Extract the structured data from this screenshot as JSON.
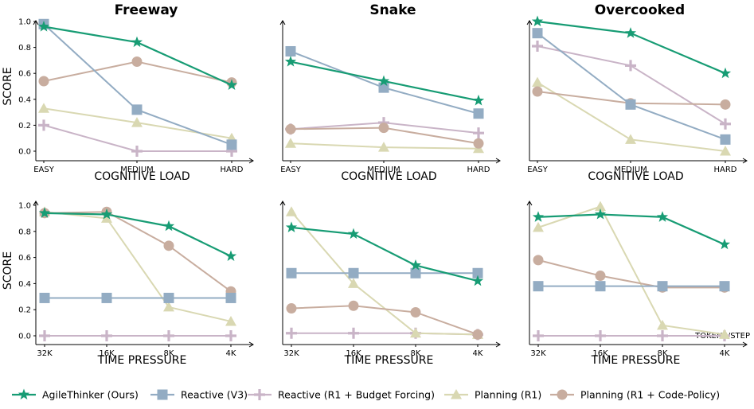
{
  "chart_data": [
    {
      "type": "line",
      "title": "Freeway",
      "xlabel": "COGNITIVE LOAD",
      "ylabel": "SCORE",
      "categories": [
        "EASY",
        "MEDIUM",
        "HARD"
      ],
      "ylim": [
        0,
        1
      ],
      "yticks": [
        "0.0",
        "0.2",
        "0.4",
        "0.6",
        "0.8",
        "1.0"
      ],
      "series": [
        {
          "name": "AgileThinker (Ours)",
          "values": [
            0.96,
            0.84,
            0.51
          ]
        },
        {
          "name": "Reactive (V3)",
          "values": [
            0.98,
            0.32,
            0.05
          ]
        },
        {
          "name": "Reactive (R1 + Budget Forcing)",
          "values": [
            0.2,
            0.0,
            0.0
          ]
        },
        {
          "name": "Planning (R1)",
          "values": [
            0.33,
            0.22,
            0.1
          ]
        },
        {
          "name": "Planning (R1 + Code-Policy)",
          "values": [
            0.54,
            0.69,
            0.53
          ]
        }
      ]
    },
    {
      "type": "line",
      "title": "Snake",
      "xlabel": "COGNITIVE LOAD",
      "ylabel": "",
      "categories": [
        "EASY",
        "MEDIUM",
        "HARD"
      ],
      "ylim": [
        0,
        1
      ],
      "yticks": [],
      "series": [
        {
          "name": "AgileThinker (Ours)",
          "values": [
            0.69,
            0.54,
            0.39
          ]
        },
        {
          "name": "Reactive (V3)",
          "values": [
            0.77,
            0.49,
            0.29
          ]
        },
        {
          "name": "Reactive (R1 + Budget Forcing)",
          "values": [
            0.17,
            0.22,
            0.14
          ]
        },
        {
          "name": "Planning (R1)",
          "values": [
            0.06,
            0.03,
            0.02
          ]
        },
        {
          "name": "Planning (R1 + Code-Policy)",
          "values": [
            0.17,
            0.18,
            0.06
          ]
        }
      ]
    },
    {
      "type": "line",
      "title": "Overcooked",
      "xlabel": "COGNITIVE LOAD",
      "ylabel": "",
      "categories": [
        "EASY",
        "MEDIUM",
        "HARD"
      ],
      "ylim": [
        0,
        1
      ],
      "yticks": [],
      "series": [
        {
          "name": "AgileThinker (Ours)",
          "values": [
            1.0,
            0.91,
            0.6
          ]
        },
        {
          "name": "Reactive (V3)",
          "values": [
            0.91,
            0.36,
            0.09
          ]
        },
        {
          "name": "Reactive (R1 + Budget Forcing)",
          "values": [
            0.81,
            0.66,
            0.21
          ]
        },
        {
          "name": "Planning (R1)",
          "values": [
            0.53,
            0.09,
            0.0
          ]
        },
        {
          "name": "Planning (R1 + Code-Policy)",
          "values": [
            0.46,
            0.37,
            0.36
          ]
        }
      ]
    },
    {
      "type": "line",
      "title": "",
      "xlabel": "TIME PRESSURE",
      "ylabel": "SCORE",
      "categories": [
        "32K",
        "16K",
        "8K",
        "4K"
      ],
      "ylim": [
        0,
        1
      ],
      "yticks": [
        "0.0",
        "0.2",
        "0.4",
        "0.6",
        "0.8",
        "1.0"
      ],
      "series": [
        {
          "name": "AgileThinker (Ours)",
          "values": [
            0.94,
            0.93,
            0.84,
            0.61
          ]
        },
        {
          "name": "Reactive (V3)",
          "values": [
            0.29,
            0.29,
            0.29,
            0.29
          ]
        },
        {
          "name": "Reactive (R1 + Budget Forcing)",
          "values": [
            0.0,
            0.0,
            0.0,
            0.0
          ]
        },
        {
          "name": "Planning (R1)",
          "values": [
            0.95,
            0.9,
            0.22,
            0.11
          ]
        },
        {
          "name": "Planning (R1 + Code-Policy)",
          "values": [
            0.94,
            0.95,
            0.69,
            0.34
          ]
        }
      ]
    },
    {
      "type": "line",
      "title": "",
      "xlabel": "TIME PRESSURE",
      "ylabel": "",
      "categories": [
        "32K",
        "16K",
        "8K",
        "4K"
      ],
      "ylim": [
        0,
        1
      ],
      "yticks": [],
      "series": [
        {
          "name": "AgileThinker (Ours)",
          "values": [
            0.83,
            0.78,
            0.54,
            0.42
          ]
        },
        {
          "name": "Reactive (V3)",
          "values": [
            0.48,
            0.48,
            0.48,
            0.48
          ]
        },
        {
          "name": "Reactive (R1 + Budget Forcing)",
          "values": [
            0.02,
            0.02,
            0.02,
            0.01
          ]
        },
        {
          "name": "Planning (R1)",
          "values": [
            0.95,
            0.4,
            0.02,
            0.01
          ]
        },
        {
          "name": "Planning (R1 + Code-Policy)",
          "values": [
            0.21,
            0.23,
            0.18,
            0.01
          ]
        }
      ]
    },
    {
      "type": "line",
      "title": "",
      "xlabel": "TIME PRESSURE",
      "ylabel": "",
      "xlabel2": "TOKENS/STEP",
      "categories": [
        "32K",
        "16K",
        "8K",
        "4K"
      ],
      "ylim": [
        0,
        1
      ],
      "yticks": [],
      "series": [
        {
          "name": "AgileThinker (Ours)",
          "values": [
            0.91,
            0.93,
            0.91,
            0.7
          ]
        },
        {
          "name": "Reactive (V3)",
          "values": [
            0.38,
            0.38,
            0.38,
            0.38
          ]
        },
        {
          "name": "Reactive (R1 + Budget Forcing)",
          "values": [
            0.0,
            0.0,
            0.0,
            0.0
          ]
        },
        {
          "name": "Planning (R1)",
          "values": [
            0.83,
            0.99,
            0.08,
            0.01
          ]
        },
        {
          "name": "Planning (R1 + Code-Policy)",
          "values": [
            0.58,
            0.46,
            0.37,
            0.37
          ]
        }
      ]
    }
  ],
  "legend": [
    {
      "name": "AgileThinker (Ours)",
      "marker": "star",
      "color": "#179c74"
    },
    {
      "name": "Reactive (V3)",
      "marker": "square",
      "color": "#93acc3"
    },
    {
      "name": "Reactive (R1 + Budget Forcing)",
      "marker": "plus",
      "color": "#c9b4c7"
    },
    {
      "name": "Planning (R1)",
      "marker": "triangle",
      "color": "#d9d8b2"
    },
    {
      "name": "Planning (R1 + Code-Policy)",
      "marker": "circle",
      "color": "#c8ad9f"
    }
  ]
}
